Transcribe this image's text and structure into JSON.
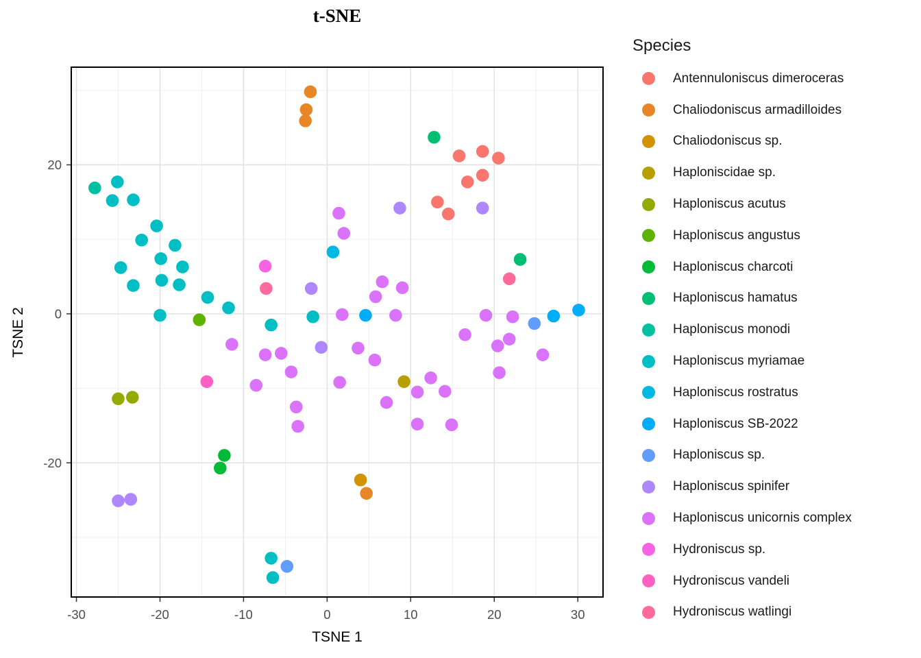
{
  "title": "t-SNE",
  "axes": {
    "xlabel": "TSNE 1",
    "ylabel": "TSNE 2"
  },
  "legend": {
    "title": "Species",
    "position": "right"
  },
  "colors": {
    "background": "#ffffff",
    "grid_major": "#e2e2e2",
    "grid_minor": "#efefef",
    "panel_border": "#000000",
    "tick": "#333333",
    "tick_label": "#4d4d4d"
  },
  "chart_data": {
    "type": "scatter",
    "title": "t-SNE",
    "xlabel": "TSNE 1",
    "ylabel": "TSNE 2",
    "xlim": [
      -30.7,
      33.1
    ],
    "ylim": [
      -38.1,
      33.2
    ],
    "x_ticks": [
      -30,
      -20,
      -10,
      0,
      10,
      20,
      30
    ],
    "y_ticks": [
      -20,
      0,
      20
    ],
    "x_minor_ticks": [
      -25,
      -15,
      -5,
      5,
      15,
      25
    ],
    "y_minor_ticks": [
      -30,
      -10,
      10,
      30
    ],
    "grid": true,
    "legend_position": "right",
    "point_radius_px": 9.3,
    "series": [
      {
        "name": "Antennuloniscus dimeroceras",
        "color": "#F8766D",
        "points": [
          [
            15.8,
            21.2
          ],
          [
            18.6,
            21.8
          ],
          [
            20.5,
            20.9
          ],
          [
            16.8,
            17.7
          ],
          [
            18.6,
            18.6
          ],
          [
            13.2,
            15.0
          ],
          [
            14.5,
            13.4
          ]
        ]
      },
      {
        "name": "Chaliodoniscus armadilloides",
        "color": "#E88526",
        "points": [
          [
            -2.0,
            29.8
          ],
          [
            -2.5,
            27.4
          ],
          [
            -2.6,
            25.9
          ],
          [
            4.7,
            -24.1
          ]
        ]
      },
      {
        "name": "Chaliodoniscus sp.",
        "color": "#D39200",
        "points": [
          [
            4.0,
            -22.3
          ]
        ]
      },
      {
        "name": "Haploniscidae sp.",
        "color": "#B79F00",
        "points": [
          [
            9.2,
            -9.1
          ]
        ]
      },
      {
        "name": "Haploniscus acutus",
        "color": "#93AA00",
        "points": [
          [
            -25.0,
            -11.4
          ],
          [
            -23.3,
            -11.2
          ]
        ]
      },
      {
        "name": "Haploniscus angustus",
        "color": "#5EB300",
        "points": [
          [
            -15.3,
            -0.8
          ]
        ]
      },
      {
        "name": "Haploniscus charcoti",
        "color": "#00BA38",
        "points": [
          [
            -12.3,
            -19.0
          ],
          [
            -12.8,
            -20.7
          ]
        ]
      },
      {
        "name": "Haploniscus hamatus",
        "color": "#00BF74",
        "points": [
          [
            12.8,
            23.7
          ],
          [
            23.1,
            7.3
          ]
        ]
      },
      {
        "name": "Haploniscus monodi",
        "color": "#00C19F",
        "points": [
          [
            -27.8,
            16.9
          ]
        ]
      },
      {
        "name": "Haploniscus myriamae",
        "color": "#00BFC4",
        "points": [
          [
            -25.1,
            17.7
          ],
          [
            -25.7,
            15.2
          ],
          [
            -23.2,
            15.3
          ],
          [
            -20.4,
            11.8
          ],
          [
            -22.2,
            9.9
          ],
          [
            -18.2,
            9.2
          ],
          [
            -19.9,
            7.4
          ],
          [
            -24.7,
            6.2
          ],
          [
            -17.3,
            6.3
          ],
          [
            -23.2,
            3.8
          ],
          [
            -19.8,
            4.5
          ],
          [
            -17.7,
            3.9
          ],
          [
            -14.3,
            2.2
          ],
          [
            -11.8,
            0.8
          ],
          [
            -20.0,
            -0.2
          ],
          [
            -1.7,
            -0.4
          ],
          [
            -6.7,
            -1.5
          ],
          [
            -6.7,
            -32.8
          ],
          [
            -6.5,
            -35.4
          ]
        ]
      },
      {
        "name": "Haploniscus rostratus",
        "color": "#00B9E3",
        "points": [
          [
            0.7,
            8.3
          ]
        ]
      },
      {
        "name": "Haploniscus SB-2022",
        "color": "#00ADFA",
        "points": [
          [
            4.6,
            -0.2
          ],
          [
            27.1,
            -0.3
          ],
          [
            30.1,
            0.5
          ]
        ]
      },
      {
        "name": "Haploniscus sp.",
        "color": "#619CFF",
        "points": [
          [
            24.8,
            -1.3
          ],
          [
            -4.8,
            -33.9
          ]
        ]
      },
      {
        "name": "Haploniscus spinifer",
        "color": "#AE87FF",
        "points": [
          [
            -1.9,
            3.4
          ],
          [
            8.7,
            14.2
          ],
          [
            18.6,
            14.2
          ],
          [
            -0.7,
            -4.5
          ],
          [
            -25.0,
            -25.1
          ],
          [
            -23.5,
            -24.9
          ]
        ]
      },
      {
        "name": "Haploniscus unicornis complex",
        "color": "#DB72FB",
        "points": [
          [
            1.4,
            13.5
          ],
          [
            2.0,
            10.8
          ],
          [
            6.6,
            4.3
          ],
          [
            9.0,
            3.5
          ],
          [
            5.8,
            2.3
          ],
          [
            1.8,
            -0.1
          ],
          [
            8.2,
            -0.2
          ],
          [
            19.0,
            -0.2
          ],
          [
            22.2,
            -0.4
          ],
          [
            16.5,
            -2.8
          ],
          [
            21.8,
            -3.4
          ],
          [
            20.4,
            -4.3
          ],
          [
            3.7,
            -4.6
          ],
          [
            5.7,
            -6.2
          ],
          [
            25.8,
            -5.5
          ],
          [
            -11.4,
            -4.1
          ],
          [
            -7.4,
            -5.5
          ],
          [
            -5.5,
            -5.3
          ],
          [
            -4.3,
            -7.8
          ],
          [
            -8.5,
            -9.6
          ],
          [
            -3.7,
            -12.5
          ],
          [
            -3.5,
            -15.1
          ],
          [
            1.5,
            -9.2
          ],
          [
            20.6,
            -7.9
          ],
          [
            12.4,
            -8.6
          ],
          [
            10.8,
            -10.5
          ],
          [
            14.1,
            -10.4
          ],
          [
            7.1,
            -11.9
          ],
          [
            10.8,
            -14.8
          ],
          [
            14.9,
            -14.9
          ]
        ]
      },
      {
        "name": "Hydroniscus sp.",
        "color": "#F564E3",
        "points": [
          [
            -7.4,
            6.4
          ]
        ]
      },
      {
        "name": "Hydroniscus vandeli",
        "color": "#FF61C3",
        "points": [
          [
            -14.4,
            -9.1
          ]
        ]
      },
      {
        "name": "Hydroniscus watlingi",
        "color": "#FF699C",
        "points": [
          [
            -7.3,
            3.4
          ],
          [
            21.8,
            4.7
          ]
        ]
      }
    ]
  }
}
